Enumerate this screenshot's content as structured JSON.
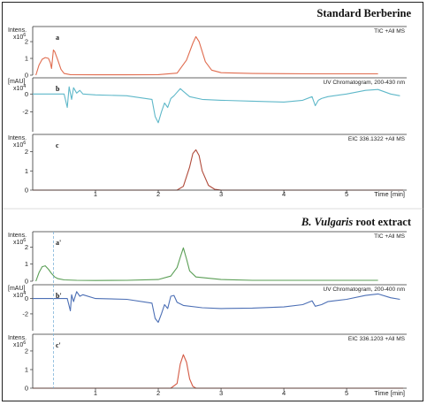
{
  "chart_data": [
    {
      "type": "line",
      "title": "Standard Berberine",
      "x_label": "Time [min]",
      "x_ticks": [
        1,
        2,
        3,
        4,
        5
      ],
      "xlim": [
        0,
        5.9
      ],
      "grid": false,
      "panels": [
        {
          "label": "a",
          "annotation": "TIC +All MS",
          "ylabel": [
            "Intens.",
            "x10^6"
          ],
          "y_ticks": [
            0,
            1,
            2
          ],
          "ylim": [
            0,
            2.9
          ],
          "color": "#e06c4f",
          "x": [
            0.05,
            0.1,
            0.15,
            0.2,
            0.25,
            0.28,
            0.3,
            0.33,
            0.35,
            0.4,
            0.45,
            0.5,
            0.6,
            1.0,
            1.5,
            2.0,
            2.3,
            2.45,
            2.55,
            2.6,
            2.65,
            2.75,
            2.85,
            3.0,
            3.5,
            4.0,
            4.5,
            5.0,
            5.5
          ],
          "y": [
            0.0,
            0.6,
            0.95,
            1.05,
            1.0,
            0.75,
            0.4,
            1.5,
            1.4,
            0.9,
            0.35,
            0.1,
            0.03,
            0.02,
            0.02,
            0.03,
            0.12,
            0.9,
            1.9,
            2.3,
            2.0,
            0.8,
            0.3,
            0.15,
            0.1,
            0.09,
            0.08,
            0.08,
            0.08
          ]
        },
        {
          "label": "b",
          "annotation": "UV Chromatogram, 200-430 nm",
          "ylabel": [
            "[mAU]",
            "x10^4"
          ],
          "y_ticks": [
            -2,
            0
          ],
          "ylim": [
            -4.2,
            1.8
          ],
          "color": "#5fb8c9",
          "x": [
            0.0,
            0.3,
            0.5,
            0.55,
            0.58,
            0.62,
            0.65,
            0.7,
            0.75,
            0.8,
            1.0,
            1.5,
            1.9,
            1.95,
            2.0,
            2.05,
            2.1,
            2.15,
            2.2,
            2.25,
            2.3,
            2.35,
            2.4,
            2.5,
            2.7,
            3.0,
            3.5,
            4.0,
            4.3,
            4.45,
            4.5,
            4.55,
            4.6,
            4.7,
            5.0,
            5.3,
            5.5,
            5.7,
            5.85
          ],
          "y": [
            0.0,
            0.0,
            0.0,
            -1.5,
            0.8,
            -0.6,
            0.7,
            0.1,
            0.4,
            0.0,
            -0.1,
            -0.2,
            -0.6,
            -2.5,
            -3.2,
            -2.0,
            -1.0,
            -1.5,
            -0.5,
            -0.2,
            0.2,
            0.6,
            0.3,
            -0.3,
            -0.6,
            -0.7,
            -0.8,
            -0.9,
            -0.7,
            -0.3,
            -1.3,
            -0.7,
            -0.5,
            -0.3,
            0.0,
            0.4,
            0.5,
            0.0,
            -0.2
          ]
        },
        {
          "label": "c",
          "annotation": "EIC 336.1322 +All MS",
          "ylabel": [
            "Intens.",
            "x10^6"
          ],
          "y_ticks": [
            0,
            1,
            2
          ],
          "ylim": [
            0,
            2.9
          ],
          "color": "#b04a3a",
          "x": [
            0.0,
            2.3,
            2.4,
            2.5,
            2.55,
            2.6,
            2.65,
            2.7,
            2.8,
            2.9,
            3.0,
            5.9
          ],
          "y": [
            0.0,
            0.0,
            0.2,
            1.2,
            1.9,
            2.1,
            1.8,
            1.0,
            0.25,
            0.04,
            0.0,
            0.0
          ]
        }
      ]
    },
    {
      "type": "line",
      "title": [
        {
          "text": "B. Vulgaris",
          "italic": true
        },
        {
          "text": " root extract",
          "italic": false
        }
      ],
      "x_label": "Time [min]",
      "x_ticks": [
        1,
        2,
        3,
        4,
        5
      ],
      "xlim": [
        0,
        5.9
      ],
      "grid": false,
      "marker_time_min": 0.33,
      "panels": [
        {
          "label": "a'",
          "annotation": "TIC +All MS",
          "ylabel": [
            "Intens.",
            "x10^6"
          ],
          "y_ticks": [
            0,
            1,
            2
          ],
          "ylim": [
            0,
            2.9
          ],
          "color": "#5a9e55",
          "x": [
            0.05,
            0.1,
            0.15,
            0.2,
            0.25,
            0.3,
            0.35,
            0.4,
            0.5,
            0.7,
            1.0,
            1.5,
            2.0,
            2.2,
            2.3,
            2.35,
            2.4,
            2.45,
            2.5,
            2.6,
            3.0,
            3.5,
            4.0,
            4.5,
            5.0,
            5.5
          ],
          "y": [
            0.0,
            0.5,
            0.85,
            0.9,
            0.7,
            0.45,
            0.25,
            0.15,
            0.08,
            0.05,
            0.04,
            0.05,
            0.1,
            0.3,
            0.8,
            1.4,
            1.95,
            1.3,
            0.6,
            0.25,
            0.1,
            0.05,
            0.05,
            0.05,
            0.05,
            0.05
          ]
        },
        {
          "label": "b'",
          "annotation": "UV Chromatogram, 200-400 nm",
          "ylabel": [
            "[mAU]",
            "x10^4"
          ],
          "y_ticks": [
            -2,
            0
          ],
          "ylim": [
            -4.2,
            1.8
          ],
          "color": "#4c6fb5",
          "x": [
            0.0,
            0.55,
            0.6,
            0.62,
            0.65,
            0.7,
            0.75,
            0.8,
            1.0,
            1.5,
            1.9,
            1.95,
            2.0,
            2.05,
            2.1,
            2.15,
            2.2,
            2.25,
            2.3,
            2.4,
            2.7,
            3.0,
            3.5,
            4.0,
            4.3,
            4.45,
            4.5,
            4.6,
            4.7,
            5.0,
            5.3,
            5.5,
            5.7,
            5.85
          ],
          "y": [
            0.0,
            0.0,
            -1.6,
            0.5,
            -0.4,
            0.9,
            0.3,
            0.5,
            0.0,
            -0.1,
            -0.6,
            -2.6,
            -3.1,
            -2.0,
            -0.8,
            -1.3,
            0.3,
            0.4,
            -0.5,
            -0.9,
            -1.2,
            -1.3,
            -1.25,
            -1.1,
            -0.8,
            -0.3,
            -1.0,
            -0.8,
            -0.4,
            -0.1,
            0.4,
            0.6,
            0.1,
            -0.1
          ]
        },
        {
          "label": "c'",
          "annotation": "EIC 336.1203 +All MS",
          "ylabel": [
            "Intens.",
            "x10^6"
          ],
          "y_ticks": [
            0,
            1,
            2
          ],
          "ylim": [
            0,
            2.9
          ],
          "color": "#d45a44",
          "x": [
            0.0,
            2.2,
            2.3,
            2.35,
            2.4,
            2.45,
            2.5,
            2.55,
            2.6,
            5.9
          ],
          "y": [
            0.0,
            0.0,
            0.25,
            1.3,
            1.8,
            1.4,
            0.5,
            0.1,
            0.0,
            0.0
          ]
        }
      ]
    }
  ]
}
